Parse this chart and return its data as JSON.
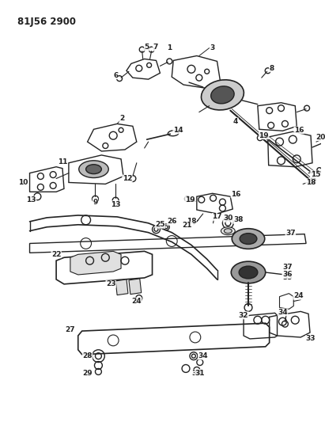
{
  "title": "81J56 2900",
  "bg_color": "#ffffff",
  "line_color": "#222222",
  "figsize": [
    4.11,
    5.33
  ],
  "dpi": 100
}
